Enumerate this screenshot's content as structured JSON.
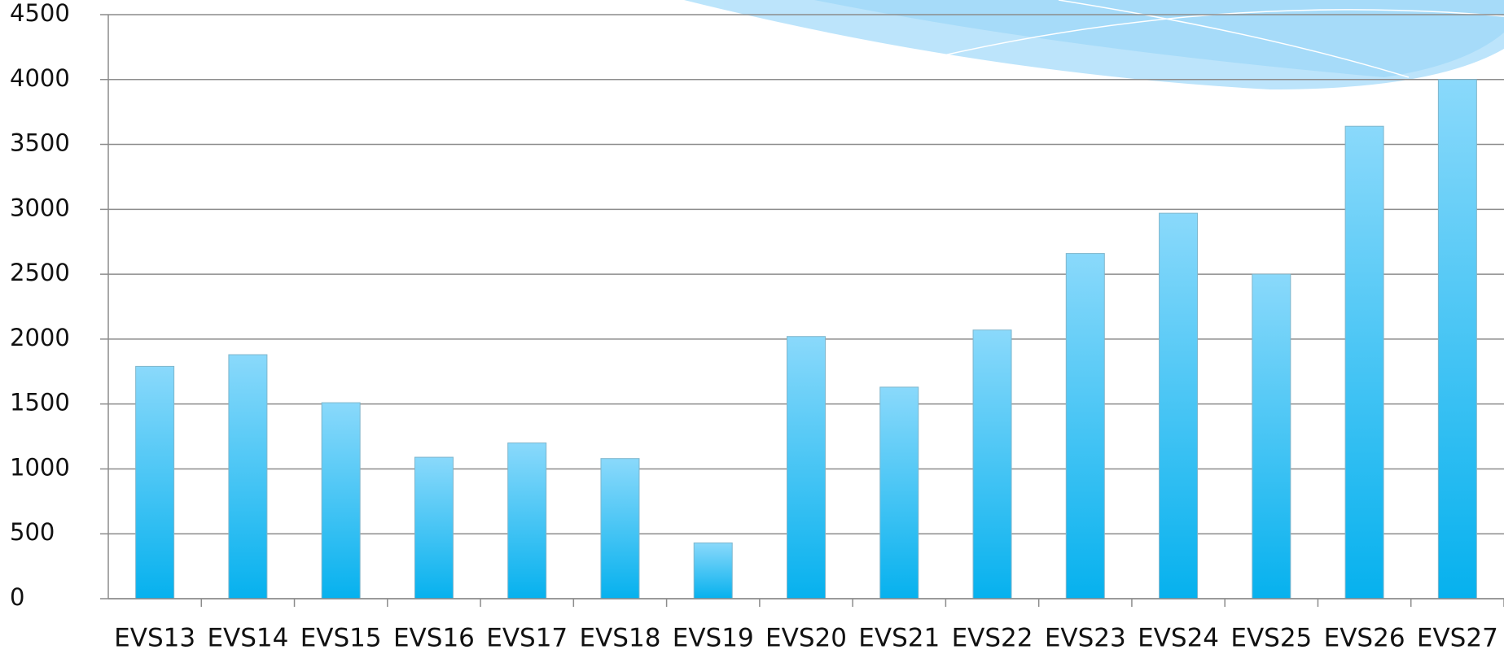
{
  "chart_data": {
    "type": "bar",
    "categories": [
      "EVS13",
      "EVS14",
      "EVS15",
      "EVS16",
      "EVS17",
      "EVS18",
      "EVS19",
      "EVS20",
      "EVS21",
      "EVS22",
      "EVS23",
      "EVS24",
      "EVS25",
      "EVS26",
      "EVS27"
    ],
    "values": [
      1790,
      1880,
      1510,
      1090,
      1200,
      1080,
      430,
      2020,
      1630,
      2070,
      2660,
      2970,
      2500,
      3640,
      4000
    ],
    "color": "#29bdf2",
    "ylim": [
      0,
      4500
    ],
    "yticks": [
      0,
      500,
      1000,
      1500,
      2000,
      2500,
      3000,
      3500,
      4000,
      4500
    ],
    "grid": true
  }
}
